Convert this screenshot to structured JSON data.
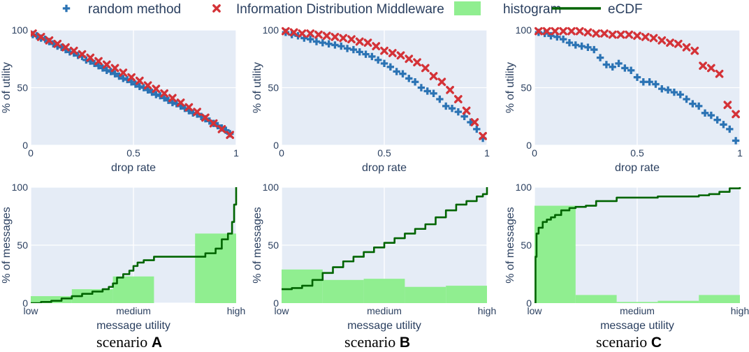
{
  "legend": {
    "items": [
      {
        "label": "random method",
        "kind": "plus",
        "color": "#2b73b4"
      },
      {
        "label": "Information Distribution Middleware",
        "kind": "x",
        "color": "#d43237"
      },
      {
        "label": "histogram",
        "kind": "rect",
        "color": "#90ee90"
      },
      {
        "label": "eCDF",
        "kind": "line",
        "color": "#006400"
      }
    ]
  },
  "chart_data": [
    {
      "id": "A_top",
      "type": "scatter",
      "scenario": "A",
      "xlabel": "drop rate",
      "ylabel": "% of utility",
      "xlim": [
        0,
        1
      ],
      "ylim": [
        0,
        100
      ],
      "xticks": [
        {
          "v": 0,
          "label": "0"
        },
        {
          "v": 0.5,
          "label": "0.5"
        },
        {
          "v": 1,
          "label": "1"
        }
      ],
      "yticks": [
        {
          "v": 0,
          "label": "0"
        },
        {
          "v": 50,
          "label": "50"
        },
        {
          "v": 100,
          "label": "100"
        }
      ],
      "series": [
        {
          "name": "random method",
          "marker": "plus",
          "color": "#2b73b4",
          "x": [
            0.01,
            0.03,
            0.05,
            0.07,
            0.09,
            0.11,
            0.13,
            0.15,
            0.17,
            0.19,
            0.21,
            0.23,
            0.25,
            0.27,
            0.29,
            0.31,
            0.33,
            0.35,
            0.37,
            0.39,
            0.41,
            0.43,
            0.45,
            0.47,
            0.49,
            0.51,
            0.53,
            0.55,
            0.57,
            0.59,
            0.61,
            0.63,
            0.65,
            0.67,
            0.69,
            0.71,
            0.73,
            0.75,
            0.77,
            0.79,
            0.81,
            0.83,
            0.85,
            0.87,
            0.89,
            0.91,
            0.93,
            0.95,
            0.97
          ],
          "y": [
            96,
            95,
            93,
            92,
            90,
            88,
            86,
            85,
            83,
            81,
            80,
            78,
            77,
            74,
            73,
            71,
            69,
            67,
            65,
            64,
            62,
            60,
            58,
            57,
            55,
            53,
            51,
            50,
            48,
            46,
            44,
            43,
            41,
            39,
            37,
            36,
            34,
            32,
            30,
            28,
            27,
            25,
            23,
            21,
            19,
            17,
            15,
            13,
            10
          ]
        },
        {
          "name": "Information Distribution Middleware",
          "marker": "x",
          "color": "#d43237",
          "x": [
            0.01,
            0.05,
            0.09,
            0.13,
            0.17,
            0.21,
            0.25,
            0.29,
            0.33,
            0.37,
            0.41,
            0.45,
            0.49,
            0.53,
            0.57,
            0.61,
            0.65,
            0.69,
            0.73,
            0.77,
            0.81,
            0.85,
            0.89,
            0.93,
            0.97
          ],
          "y": [
            97,
            94,
            91,
            88,
            85,
            82,
            79,
            76,
            73,
            70,
            67,
            63,
            59,
            56,
            52,
            49,
            45,
            41,
            37,
            33,
            29,
            24,
            19,
            14,
            9
          ]
        }
      ]
    },
    {
      "id": "B_top",
      "type": "scatter",
      "scenario": "B",
      "xlabel": "drop rate",
      "ylabel": "% of utility",
      "xlim": [
        0,
        1
      ],
      "ylim": [
        0,
        100
      ],
      "xticks": [
        {
          "v": 0,
          "label": "0"
        },
        {
          "v": 0.5,
          "label": "0.5"
        },
        {
          "v": 1,
          "label": "1"
        }
      ],
      "yticks": [
        {
          "v": 0,
          "label": "0"
        },
        {
          "v": 50,
          "label": "50"
        },
        {
          "v": 100,
          "label": "100"
        }
      ],
      "series": [
        {
          "name": "random method",
          "marker": "plus",
          "color": "#2b73b4",
          "x": [
            0.02,
            0.05,
            0.08,
            0.11,
            0.14,
            0.17,
            0.2,
            0.23,
            0.26,
            0.29,
            0.32,
            0.35,
            0.38,
            0.41,
            0.44,
            0.47,
            0.5,
            0.53,
            0.56,
            0.59,
            0.62,
            0.65,
            0.68,
            0.71,
            0.74,
            0.77,
            0.8,
            0.83,
            0.86,
            0.89,
            0.92,
            0.95,
            0.98
          ],
          "y": [
            98,
            96,
            95,
            93,
            92,
            90,
            89,
            88,
            87,
            86,
            84,
            83,
            81,
            79,
            77,
            74,
            71,
            68,
            64,
            62,
            58,
            55,
            50,
            47,
            45,
            40,
            34,
            32,
            29,
            25,
            20,
            14,
            6
          ]
        },
        {
          "name": "Information Distribution Middleware",
          "marker": "x",
          "color": "#d43237",
          "x": [
            0.02,
            0.06,
            0.1,
            0.14,
            0.18,
            0.22,
            0.26,
            0.3,
            0.34,
            0.38,
            0.42,
            0.46,
            0.5,
            0.54,
            0.58,
            0.62,
            0.66,
            0.7,
            0.74,
            0.78,
            0.82,
            0.86,
            0.9,
            0.94,
            0.98
          ],
          "y": [
            99,
            98,
            97,
            97,
            96,
            95,
            94,
            93,
            92,
            90,
            89,
            86,
            82,
            80,
            78,
            75,
            72,
            67,
            60,
            55,
            48,
            40,
            30,
            20,
            8
          ]
        }
      ]
    },
    {
      "id": "C_top",
      "type": "scatter",
      "scenario": "C",
      "xlabel": "drop rate",
      "ylabel": "% of utility",
      "xlim": [
        0,
        1
      ],
      "ylim": [
        0,
        100
      ],
      "xticks": [
        {
          "v": 0,
          "label": "0"
        },
        {
          "v": 0.5,
          "label": "0.5"
        },
        {
          "v": 1,
          "label": "1"
        }
      ],
      "yticks": [
        {
          "v": 0,
          "label": "0"
        },
        {
          "v": 50,
          "label": "50"
        },
        {
          "v": 100,
          "label": "100"
        }
      ],
      "series": [
        {
          "name": "random method",
          "marker": "plus",
          "color": "#2b73b4",
          "x": [
            0.02,
            0.05,
            0.08,
            0.11,
            0.14,
            0.17,
            0.2,
            0.23,
            0.26,
            0.29,
            0.32,
            0.35,
            0.38,
            0.41,
            0.44,
            0.47,
            0.5,
            0.53,
            0.56,
            0.59,
            0.62,
            0.65,
            0.68,
            0.71,
            0.74,
            0.77,
            0.8,
            0.83,
            0.86,
            0.89,
            0.92,
            0.95,
            0.98
          ],
          "y": [
            98,
            97,
            95,
            94,
            92,
            89,
            87,
            86,
            85,
            83,
            76,
            70,
            68,
            71,
            67,
            65,
            59,
            55,
            55,
            53,
            49,
            48,
            46,
            44,
            40,
            36,
            34,
            28,
            26,
            22,
            18,
            14,
            4
          ]
        },
        {
          "name": "Information Distribution Middleware",
          "marker": "x",
          "color": "#d43237",
          "x": [
            0.02,
            0.06,
            0.1,
            0.14,
            0.18,
            0.22,
            0.26,
            0.3,
            0.34,
            0.38,
            0.42,
            0.46,
            0.5,
            0.54,
            0.58,
            0.62,
            0.66,
            0.7,
            0.74,
            0.78,
            0.82,
            0.86,
            0.9,
            0.94,
            0.98
          ],
          "y": [
            99,
            99,
            99,
            99,
            99,
            99,
            98,
            97,
            97,
            96,
            96,
            96,
            95,
            94,
            93,
            91,
            89,
            88,
            85,
            82,
            69,
            67,
            62,
            35,
            27
          ]
        }
      ]
    },
    {
      "id": "A_bottom",
      "type": "bar+line",
      "scenario": "A",
      "xlabel": "message utility",
      "ylabel": "% of messages",
      "xlim": [
        0,
        1
      ],
      "ylim": [
        0,
        100
      ],
      "xticks": [
        {
          "v": 0,
          "label": "low"
        },
        {
          "v": 0.5,
          "label": "medium"
        },
        {
          "v": 1,
          "label": "high"
        }
      ],
      "yticks": [
        {
          "v": 0,
          "label": "0"
        },
        {
          "v": 50,
          "label": "50"
        },
        {
          "v": 100,
          "label": "100"
        }
      ],
      "histogram": {
        "bin_edges": [
          0,
          0.2,
          0.4,
          0.6,
          0.8,
          1.0
        ],
        "values": [
          6,
          12,
          23,
          0,
          60
        ]
      },
      "ecdf": {
        "x": [
          0,
          0.05,
          0.1,
          0.15,
          0.2,
          0.25,
          0.3,
          0.35,
          0.38,
          0.4,
          0.42,
          0.45,
          0.48,
          0.5,
          0.52,
          0.55,
          0.6,
          0.7,
          0.8,
          0.85,
          0.9,
          0.93,
          0.96,
          0.98,
          0.99,
          1.0
        ],
        "y": [
          0,
          1,
          2,
          4,
          6,
          8,
          10,
          12,
          14,
          17,
          22,
          25,
          28,
          32,
          35,
          37,
          40,
          40,
          40,
          43,
          47,
          55,
          60,
          70,
          85,
          100
        ]
      }
    },
    {
      "id": "B_bottom",
      "type": "bar+line",
      "scenario": "B",
      "xlabel": "message utility",
      "ylabel": "% of messages",
      "xlim": [
        0,
        1
      ],
      "ylim": [
        0,
        100
      ],
      "xticks": [
        {
          "v": 0,
          "label": "low"
        },
        {
          "v": 0.5,
          "label": "medium"
        },
        {
          "v": 1,
          "label": "high"
        }
      ],
      "yticks": [
        {
          "v": 0,
          "label": "0"
        },
        {
          "v": 50,
          "label": "50"
        },
        {
          "v": 100,
          "label": "100"
        }
      ],
      "histogram": {
        "bin_edges": [
          0,
          0.2,
          0.4,
          0.6,
          0.8,
          1.0
        ],
        "values": [
          29,
          20,
          21,
          14,
          15
        ]
      },
      "ecdf": {
        "x": [
          0,
          0.05,
          0.1,
          0.15,
          0.2,
          0.25,
          0.3,
          0.35,
          0.4,
          0.45,
          0.5,
          0.55,
          0.6,
          0.65,
          0.7,
          0.75,
          0.8,
          0.85,
          0.9,
          0.95,
          0.98,
          1.0
        ],
        "y": [
          12,
          13,
          15,
          20,
          26,
          31,
          36,
          40,
          44,
          48,
          52,
          56,
          60,
          64,
          68,
          74,
          80,
          85,
          88,
          92,
          94,
          100
        ]
      }
    },
    {
      "id": "C_bottom",
      "type": "bar+line",
      "scenario": "C",
      "xlabel": "message utility",
      "ylabel": "% of messages",
      "xlim": [
        0,
        1
      ],
      "ylim": [
        0,
        100
      ],
      "xticks": [
        {
          "v": 0,
          "label": "low"
        },
        {
          "v": 0.5,
          "label": "medium"
        },
        {
          "v": 1,
          "label": "high"
        }
      ],
      "yticks": [
        {
          "v": 0,
          "label": "0"
        },
        {
          "v": 50,
          "label": "50"
        },
        {
          "v": 100,
          "label": "100"
        }
      ],
      "histogram": {
        "bin_edges": [
          0,
          0.2,
          0.4,
          0.6,
          0.8,
          1.0
        ],
        "values": [
          84,
          7,
          1,
          2,
          7
        ]
      },
      "ecdf": {
        "x": [
          0,
          0.005,
          0.01,
          0.02,
          0.04,
          0.06,
          0.08,
          0.1,
          0.13,
          0.17,
          0.2,
          0.25,
          0.3,
          0.4,
          0.6,
          0.8,
          0.85,
          0.9,
          0.95,
          1.0
        ],
        "y": [
          0,
          40,
          60,
          65,
          70,
          72,
          74,
          76,
          80,
          82,
          83,
          84,
          88,
          91,
          92,
          93,
          94,
          96,
          99,
          100
        ]
      }
    }
  ],
  "captions": [
    {
      "prefix": "scenario ",
      "letter": "A"
    },
    {
      "prefix": "scenario ",
      "letter": "B"
    },
    {
      "prefix": "scenario ",
      "letter": "C"
    }
  ]
}
